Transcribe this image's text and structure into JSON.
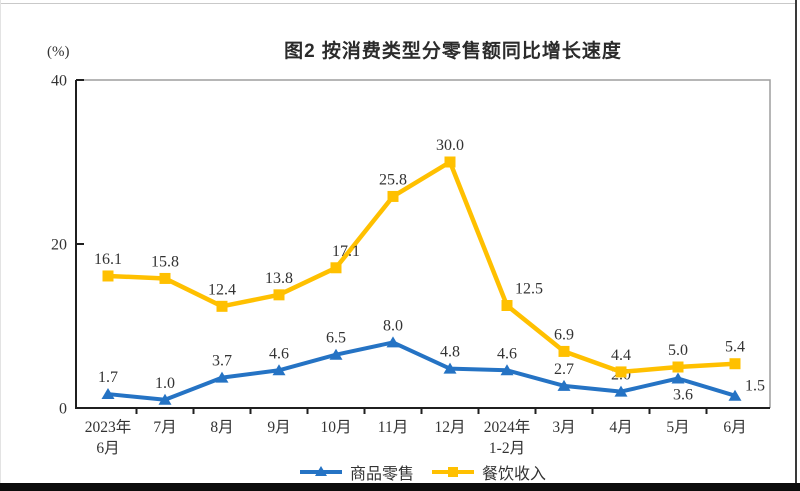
{
  "chart_data": {
    "type": "line",
    "title": "图2 按消费类型分零售额同比增长速度",
    "unit_label": "(%)",
    "categories": [
      "2023年\n6月",
      "7月",
      "8月",
      "9月",
      "10月",
      "11月",
      "12月",
      "2024年\n1-2月",
      "3月",
      "4月",
      "5月",
      "6月"
    ],
    "y_ticks": [
      0,
      20,
      40
    ],
    "ylim": [
      0,
      40
    ],
    "grid": false,
    "legend_position": "bottom",
    "colors": {
      "axis": "#1f1f1f",
      "frame": "#9e9e9e",
      "label_text": "#333333"
    },
    "series": [
      {
        "name": "商品零售",
        "marker": "triangle",
        "color": "#2573C4",
        "values": [
          1.7,
          1.0,
          3.7,
          4.6,
          6.5,
          8.0,
          4.8,
          4.6,
          2.7,
          2.0,
          3.6,
          1.5
        ],
        "label_offsets": {
          "10": [
            5,
            33
          ],
          "11": [
            20,
            7
          ]
        }
      },
      {
        "name": "餐饮收入",
        "marker": "square",
        "color": "#FFC000",
        "values": [
          16.1,
          15.8,
          12.4,
          13.8,
          17.1,
          25.8,
          30.0,
          12.5,
          6.9,
          4.4,
          5.0,
          5.4
        ],
        "label_offsets": {
          "4": [
            10,
            0
          ],
          "7": [
            22,
            0
          ]
        }
      }
    ]
  }
}
